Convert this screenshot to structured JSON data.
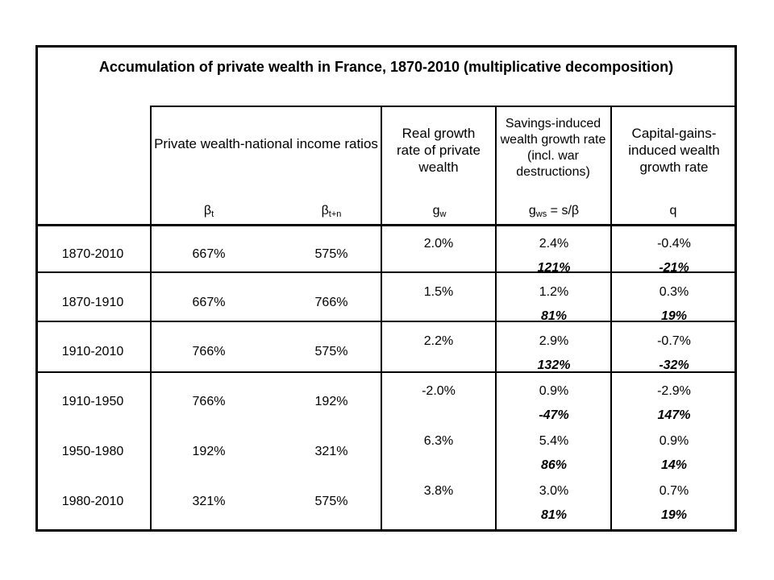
{
  "title": "Accumulation of private wealth in France, 1870-2010 (multiplicative decomposition)",
  "headers": {
    "ratios": "Private wealth-national income ratios",
    "real_growth": "Real growth rate of private wealth",
    "savings": "Savings-induced wealth growth rate (incl. war destructions)",
    "capital_gains": "Capital-gains-induced wealth growth rate"
  },
  "symbols": {
    "beta_t": "β",
    "beta_t_sub": "t",
    "beta_tn": "β",
    "beta_tn_sub": "t+n",
    "gw": "g",
    "gw_sub": "w",
    "gws": "g",
    "gws_sub": "ws",
    "gws_suffix": " = s/β",
    "q": "q"
  },
  "rows": [
    {
      "period": "1870-2010",
      "beta_t": "667%",
      "beta_tn": "575%",
      "gw": "2.0%",
      "gws": "2.4%",
      "gws_share": "121%",
      "q": "-0.4%",
      "q_share": "-21%"
    },
    {
      "period": "1870-1910",
      "beta_t": "667%",
      "beta_tn": "766%",
      "gw": "1.5%",
      "gws": "1.2%",
      "gws_share": "81%",
      "q": "0.3%",
      "q_share": "19%"
    },
    {
      "period": "1910-2010",
      "beta_t": "766%",
      "beta_tn": "575%",
      "gw": "2.2%",
      "gws": "2.9%",
      "gws_share": "132%",
      "q": "-0.7%",
      "q_share": "-32%"
    },
    {
      "period": "1910-1950",
      "beta_t": "766%",
      "beta_tn": "192%",
      "gw": "-2.0%",
      "gws": "0.9%",
      "gws_share": "-47%",
      "q": "-2.9%",
      "q_share": "147%"
    },
    {
      "period": "1950-1980",
      "beta_t": "192%",
      "beta_tn": "321%",
      "gw": "6.3%",
      "gws": "5.4%",
      "gws_share": "86%",
      "q": "0.9%",
      "q_share": "14%"
    },
    {
      "period": "1980-2010",
      "beta_t": "321%",
      "beta_tn": "575%",
      "gw": "3.8%",
      "gws": "3.0%",
      "gws_share": "81%",
      "q": "0.7%",
      "q_share": "19%"
    }
  ]
}
